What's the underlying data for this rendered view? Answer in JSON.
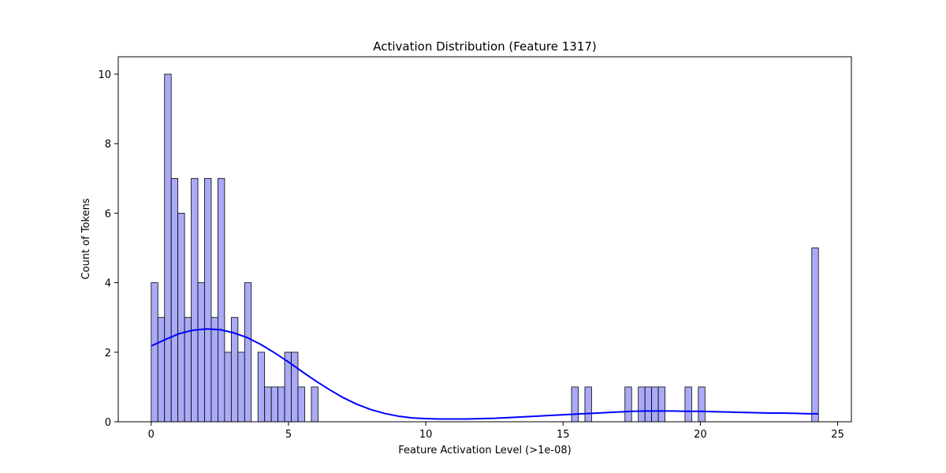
{
  "chart_data": {
    "type": "bar",
    "title": "Activation Distribution (Feature 1317)",
    "xlabel": "Feature Activation Level (>1e-08)",
    "ylabel": "Count of Tokens",
    "xlim": [
      -1.2,
      25.5
    ],
    "ylim": [
      0,
      10.5
    ],
    "x_ticks": [
      0,
      5,
      10,
      15,
      20,
      25
    ],
    "y_ticks": [
      0,
      2,
      4,
      6,
      8,
      10
    ],
    "grid": false,
    "bar_color": "#aaaaf6",
    "line_color": "#0000ff",
    "bin_width": 0.243,
    "bars": [
      {
        "x": 0.0,
        "count": 4
      },
      {
        "x": 0.243,
        "count": 3
      },
      {
        "x": 0.486,
        "count": 10
      },
      {
        "x": 0.729,
        "count": 7
      },
      {
        "x": 0.972,
        "count": 6
      },
      {
        "x": 1.215,
        "count": 3
      },
      {
        "x": 1.458,
        "count": 7
      },
      {
        "x": 1.701,
        "count": 4
      },
      {
        "x": 1.944,
        "count": 7
      },
      {
        "x": 2.187,
        "count": 3
      },
      {
        "x": 2.43,
        "count": 7
      },
      {
        "x": 2.673,
        "count": 2
      },
      {
        "x": 2.916,
        "count": 3
      },
      {
        "x": 3.159,
        "count": 2
      },
      {
        "x": 3.402,
        "count": 4
      },
      {
        "x": 3.888,
        "count": 2
      },
      {
        "x": 4.131,
        "count": 1
      },
      {
        "x": 4.374,
        "count": 1
      },
      {
        "x": 4.617,
        "count": 1
      },
      {
        "x": 4.86,
        "count": 2
      },
      {
        "x": 5.103,
        "count": 2
      },
      {
        "x": 5.346,
        "count": 1
      },
      {
        "x": 5.832,
        "count": 1
      },
      {
        "x": 15.309,
        "count": 1
      },
      {
        "x": 15.795,
        "count": 1
      },
      {
        "x": 17.253,
        "count": 1
      },
      {
        "x": 17.739,
        "count": 1
      },
      {
        "x": 17.982,
        "count": 1
      },
      {
        "x": 18.225,
        "count": 1
      },
      {
        "x": 18.468,
        "count": 1
      },
      {
        "x": 19.44,
        "count": 1
      },
      {
        "x": 19.926,
        "count": 1
      },
      {
        "x": 24.057,
        "count": 5
      }
    ],
    "kde": {
      "x": [
        0,
        0.5,
        1,
        1.5,
        2,
        2.5,
        3,
        3.5,
        4,
        4.5,
        5,
        5.5,
        6,
        6.5,
        7,
        7.5,
        8,
        8.5,
        9,
        9.5,
        10,
        10.5,
        11,
        11.5,
        12,
        12.5,
        13,
        13.5,
        14,
        14.5,
        15,
        15.5,
        16,
        16.5,
        17,
        17.5,
        18,
        18.5,
        19,
        19.5,
        20,
        20.5,
        21,
        21.5,
        22,
        22.5,
        23,
        23.5,
        24,
        24.3
      ],
      "y": [
        2.18,
        2.36,
        2.53,
        2.63,
        2.67,
        2.65,
        2.56,
        2.42,
        2.22,
        1.98,
        1.72,
        1.44,
        1.17,
        0.92,
        0.69,
        0.5,
        0.35,
        0.24,
        0.16,
        0.11,
        0.09,
        0.08,
        0.08,
        0.08,
        0.09,
        0.1,
        0.12,
        0.14,
        0.16,
        0.18,
        0.2,
        0.22,
        0.24,
        0.26,
        0.28,
        0.3,
        0.31,
        0.31,
        0.31,
        0.3,
        0.3,
        0.29,
        0.28,
        0.27,
        0.26,
        0.25,
        0.25,
        0.24,
        0.23,
        0.23
      ]
    }
  }
}
